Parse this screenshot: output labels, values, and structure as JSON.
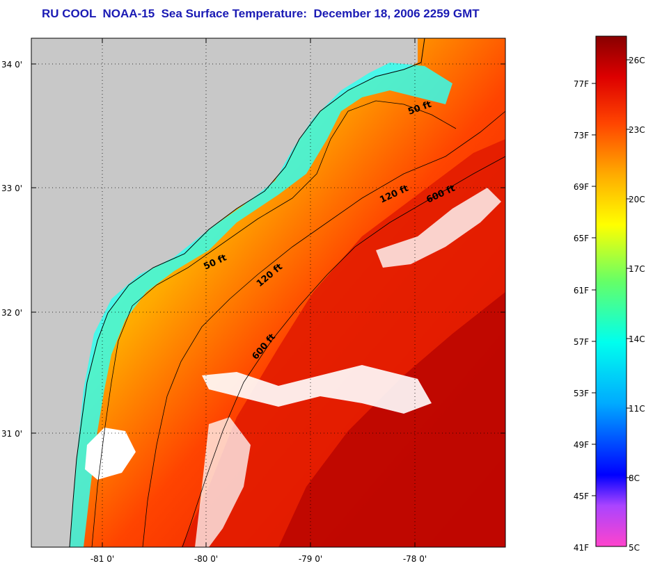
{
  "title": "RU COOL  NOAA-15  Sea Surface Temperature:  December 18, 2006 2259 GMT",
  "lat_labels": [
    "34 0'",
    "33 0'",
    "32 0'",
    "31 0'"
  ],
  "lon_labels": [
    "-81 0'",
    "-80 0'",
    "-79 0'",
    "-78 0'"
  ],
  "depth_labels": [
    "50 ft",
    "120 ft",
    "600 ft",
    "50 ft",
    "120 ft",
    "600 ft"
  ],
  "colorbar": {
    "fahrenheit": [
      "77F",
      "73F",
      "69F",
      "65F",
      "61F",
      "57F",
      "53F",
      "49F",
      "45F",
      "41F"
    ],
    "celsius": [
      "26C",
      "23C",
      "20C",
      "17C",
      "14C",
      "11C",
      "8C",
      "5C"
    ]
  },
  "colors": {
    "land": "#c8c8c8",
    "title": "#1a1ab4"
  }
}
